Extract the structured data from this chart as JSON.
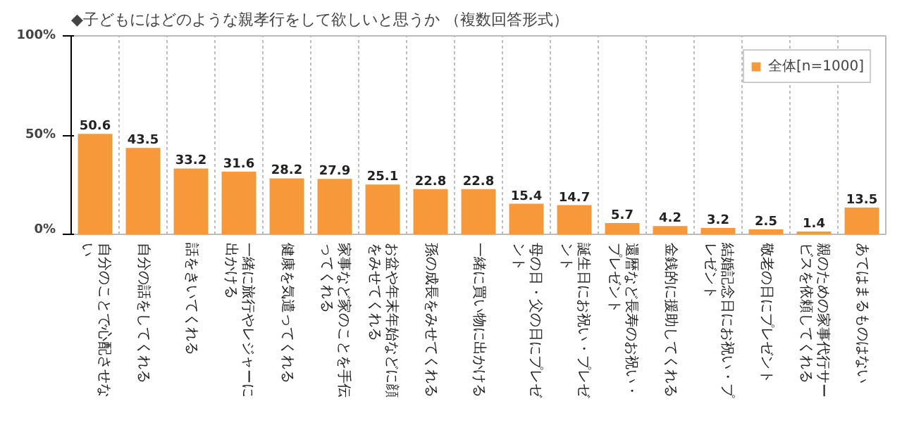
{
  "chart_data": {
    "type": "bar",
    "title": "◆子どもにはどのような親孝行をして欲しいと思うか （複数回答形式）",
    "categories": [
      "自分のことで心配させない",
      "自分の話をしてくれる",
      "話をきいてくれる",
      "一緒に旅行やレジャーに出かける",
      "健康を気遣ってくれる",
      "家事など家のことを手伝ってくれる",
      "お盆や年末年始などに顔をみせてくれる",
      "孫の成長をみせてくれる",
      "一緒に買い物に出かける",
      "母の日・父の日にプレゼント",
      "誕生日にお祝い・プレゼント",
      "還暦など長寿のお祝い・プレゼント",
      "金銭的に援助してくれる",
      "結婚記念日にお祝い・プレゼント",
      "敬老の日にプレゼント",
      "親のための家事代行サービスを依頼してくれる",
      "あてはまるものはない"
    ],
    "series": [
      {
        "name": "全体[n=1000]",
        "color": "#f7993a",
        "values": [
          50.6,
          43.5,
          33.2,
          31.6,
          28.2,
          27.9,
          25.1,
          22.8,
          22.8,
          15.4,
          14.7,
          5.7,
          4.2,
          3.2,
          2.5,
          1.4,
          13.5
        ]
      }
    ],
    "ylim": [
      0,
      100
    ],
    "yticks": [
      {
        "value": 0,
        "label": "0%"
      },
      {
        "value": 50,
        "label": "50%"
      },
      {
        "value": 100,
        "label": "100%"
      }
    ],
    "grid": "x",
    "legend": "top right",
    "data_labels": true
  }
}
